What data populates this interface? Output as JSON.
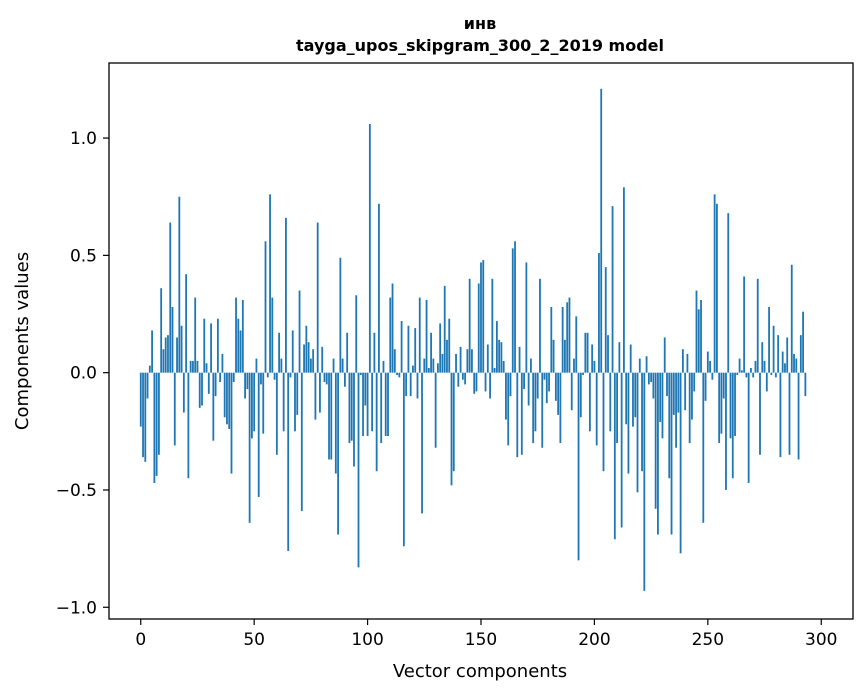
{
  "chart_data": {
    "type": "bar",
    "title": "инв",
    "subtitle": "tayga_upos_skipgram_300_2_2019 model",
    "xlabel": "Vector components",
    "ylabel": "Components values",
    "xlim": [
      -14,
      314
    ],
    "ylim": [
      -1.05,
      1.32
    ],
    "xticks": [
      0,
      50,
      100,
      150,
      200,
      250,
      300
    ],
    "xtick_labels": [
      "0",
      "50",
      "100",
      "150",
      "200",
      "250",
      "300"
    ],
    "yticks": [
      -1.0,
      -0.5,
      0.0,
      0.5,
      1.0
    ],
    "ytick_labels": [
      "−1.0",
      "−0.5",
      "0.0",
      "0.5",
      "1.0"
    ],
    "bar_color": "#1f77b4",
    "values": [
      -0.23,
      -0.36,
      -0.38,
      -0.11,
      0.03,
      0.18,
      -0.47,
      -0.44,
      -0.35,
      0.36,
      0.1,
      0.15,
      0.16,
      0.64,
      0.28,
      -0.31,
      0.15,
      0.75,
      0.2,
      -0.17,
      0.42,
      -0.45,
      0.05,
      0.05,
      0.32,
      0.05,
      -0.15,
      -0.14,
      0.23,
      0.04,
      -0.09,
      0.21,
      -0.29,
      -0.1,
      0.23,
      -0.04,
      0.08,
      -0.19,
      -0.22,
      -0.24,
      -0.43,
      -0.04,
      0.32,
      0.23,
      0.18,
      0.31,
      -0.11,
      -0.07,
      -0.64,
      -0.28,
      -0.25,
      0.06,
      -0.53,
      -0.05,
      -0.26,
      0.56,
      -0.02,
      0.76,
      0.32,
      -0.03,
      -0.35,
      0.17,
      0.06,
      -0.25,
      0.66,
      -0.76,
      -0.02,
      0.18,
      -0.25,
      -0.18,
      0.35,
      -0.59,
      0.12,
      0.2,
      0.13,
      0.06,
      0.1,
      -0.2,
      0.64,
      -0.17,
      0.11,
      -0.04,
      -0.05,
      -0.37,
      -0.37,
      0.06,
      -0.43,
      -0.69,
      0.49,
      0.06,
      -0.06,
      0.17,
      -0.3,
      -0.29,
      -0.4,
      0.33,
      -0.83,
      -0.01,
      -0.27,
      -0.14,
      -0.27,
      1.06,
      -0.25,
      0.17,
      -0.42,
      0.72,
      -0.3,
      0.05,
      -0.27,
      -0.27,
      0.32,
      0.38,
      0.1,
      -0.01,
      -0.02,
      0.22,
      -0.74,
      -0.1,
      0.2,
      -0.1,
      0.03,
      0.19,
      -0.11,
      0.32,
      -0.6,
      0.06,
      0.31,
      0.02,
      0.17,
      0.06,
      -0.32,
      0.04,
      0.21,
      0.08,
      0.37,
      0.14,
      0.23,
      -0.48,
      -0.42,
      0.08,
      -0.06,
      0.11,
      -0.03,
      -0.05,
      0.1,
      0.4,
      0.1,
      -0.09,
      -0.08,
      0.38,
      0.47,
      0.48,
      -0.08,
      0.12,
      -0.11,
      0.4,
      0.02,
      0.22,
      0.14,
      0.13,
      0.05,
      -0.2,
      -0.31,
      -0.1,
      0.53,
      0.56,
      -0.36,
      0.11,
      -0.35,
      -0.07,
      0.47,
      -0.14,
      0.06,
      -0.3,
      -0.25,
      -0.11,
      0.4,
      -0.32,
      -0.03,
      -0.13,
      -0.08,
      0.28,
      0.14,
      -0.12,
      -0.18,
      -0.3,
      0.28,
      0.14,
      0.3,
      0.32,
      -0.16,
      0.06,
      0.24,
      -0.8,
      -0.19,
      -0.01,
      0.17,
      0.17,
      -0.25,
      0.12,
      0.05,
      -0.31,
      0.51,
      1.21,
      -0.42,
      0.45,
      0.16,
      -0.25,
      0.71,
      -0.71,
      -0.3,
      0.13,
      -0.66,
      0.79,
      -0.22,
      -0.43,
      0.12,
      -0.23,
      -0.19,
      -0.51,
      0.06,
      -0.42,
      -0.93,
      0.07,
      -0.05,
      -0.04,
      -0.11,
      -0.58,
      -0.69,
      -0.21,
      -0.28,
      0.15,
      -0.1,
      -0.45,
      -0.69,
      -0.18,
      -0.32,
      -0.17,
      -0.77,
      0.1,
      -0.16,
      0.08,
      -0.3,
      -0.2,
      -0.08,
      0.35,
      0.27,
      0.31,
      -0.64,
      -0.12,
      0.09,
      0.05,
      -0.03,
      0.76,
      0.72,
      -0.3,
      -0.26,
      -0.11,
      -0.5,
      0.68,
      -0.28,
      -0.45,
      -0.27,
      -0.01,
      0.06,
      0.01,
      0.41,
      -0.02,
      -0.47,
      0.02,
      -0.02,
      0.05,
      0.4,
      -0.35,
      0.13,
      0.05,
      -0.08,
      0.28,
      -0.01,
      0.2,
      -0.02,
      0.16,
      -0.36,
      0.09,
      0.04,
      0.15,
      -0.35,
      0.46,
      0.08,
      0.06,
      -0.37,
      0.16,
      0.26,
      -0.1
    ]
  }
}
